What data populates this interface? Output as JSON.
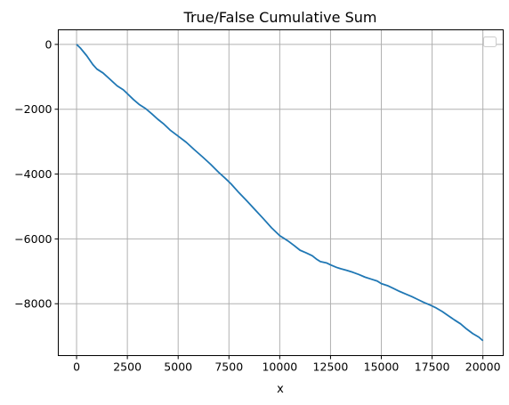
{
  "chart_data": {
    "type": "line",
    "title": "True/False Cumulative Sum",
    "xlabel": "x",
    "ylabel": "",
    "xlim": [
      -900,
      21000
    ],
    "ylim": [
      -9600,
      450
    ],
    "x_ticks": [
      0,
      2500,
      5000,
      7500,
      10000,
      12500,
      15000,
      17500,
      20000
    ],
    "x_tick_labels": [
      "0",
      "2500",
      "5000",
      "7500",
      "10000",
      "12500",
      "15000",
      "17500",
      "20000"
    ],
    "y_ticks": [
      0,
      -2000,
      -4000,
      -6000,
      -8000
    ],
    "y_tick_labels": [
      "0",
      "−2000",
      "−4000",
      "−6000",
      "−8000"
    ],
    "grid": true,
    "legend": "top-right",
    "series": [
      {
        "color": "#1f77b4",
        "x": [
          0,
          200,
          500,
          800,
          1000,
          1300,
          1600,
          2000,
          2300,
          2500,
          2800,
          3100,
          3400,
          3700,
          4000,
          4300,
          4600,
          5000,
          5400,
          5800,
          6200,
          6600,
          7000,
          7300,
          7600,
          8000,
          8400,
          8800,
          9200,
          9600,
          10000,
          10200,
          10400,
          10700,
          11000,
          11300,
          11600,
          11800,
          12000,
          12300,
          12500,
          12800,
          13000,
          13300,
          13600,
          13900,
          14200,
          14500,
          14800,
          15000,
          15300,
          15600,
          15900,
          16200,
          16500,
          16800,
          17100,
          17400,
          17700,
          18000,
          18300,
          18600,
          18900,
          19200,
          19500,
          19800,
          20000
        ],
        "y": [
          0,
          -120,
          -350,
          -620,
          -760,
          -880,
          -1050,
          -1280,
          -1400,
          -1520,
          -1700,
          -1860,
          -1980,
          -2140,
          -2310,
          -2460,
          -2640,
          -2830,
          -3020,
          -3250,
          -3470,
          -3700,
          -3950,
          -4120,
          -4300,
          -4580,
          -4840,
          -5110,
          -5380,
          -5660,
          -5900,
          -5980,
          -6060,
          -6200,
          -6350,
          -6430,
          -6520,
          -6620,
          -6700,
          -6740,
          -6800,
          -6880,
          -6920,
          -6970,
          -7030,
          -7100,
          -7180,
          -7240,
          -7300,
          -7380,
          -7440,
          -7530,
          -7620,
          -7700,
          -7780,
          -7870,
          -7960,
          -8040,
          -8130,
          -8240,
          -8370,
          -8500,
          -8620,
          -8780,
          -8920,
          -9030,
          -9140
        ]
      }
    ]
  }
}
